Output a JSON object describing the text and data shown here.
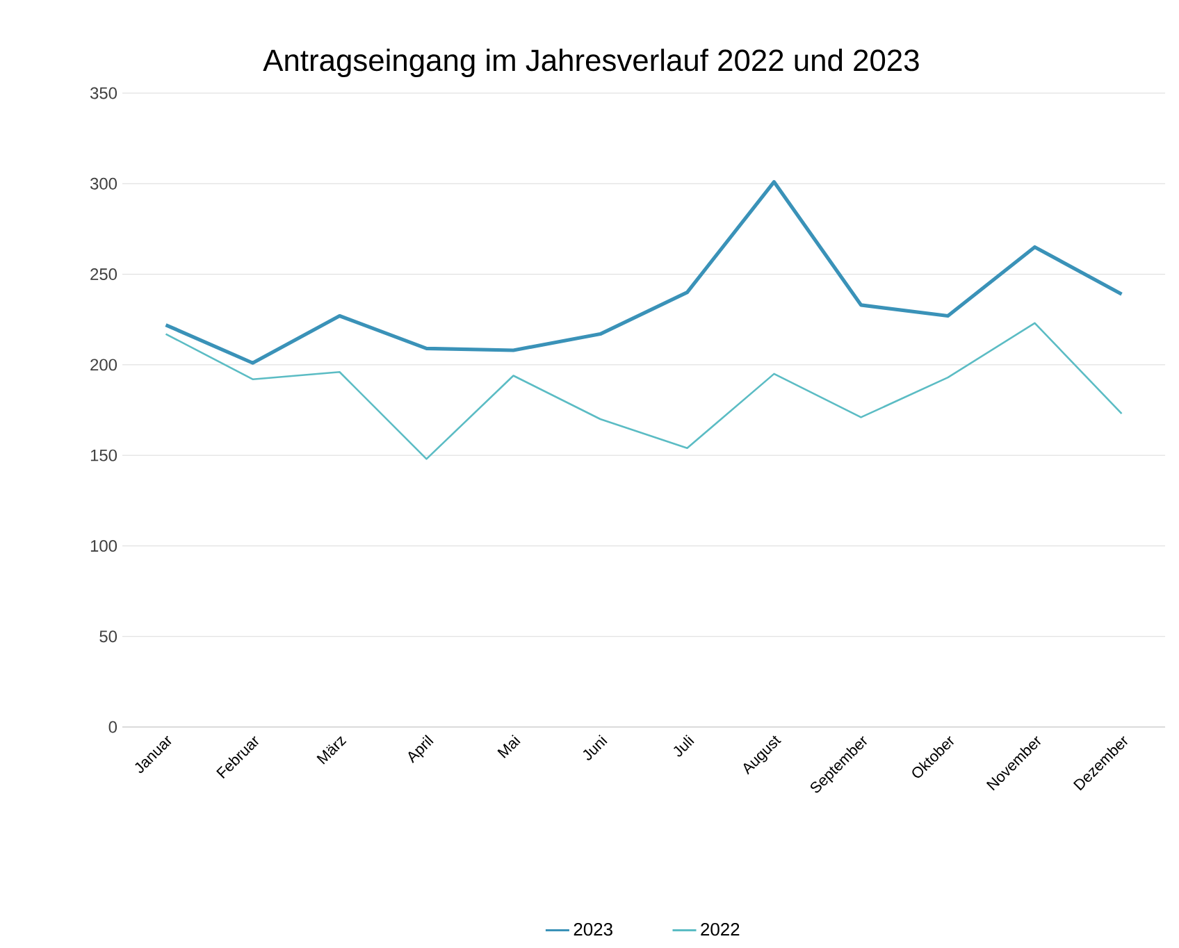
{
  "chart_data": {
    "type": "line",
    "title": "Antragseingang im Jahresverlauf 2022 und 2023",
    "categories": [
      "Januar",
      "Februar",
      "März",
      "April",
      "Mai",
      "Juni",
      "Juli",
      "August",
      "September",
      "Oktober",
      "November",
      "Dezember"
    ],
    "series": [
      {
        "name": "2023",
        "color": "#3a92b8",
        "values": [
          222,
          201,
          227,
          209,
          208,
          217,
          240,
          301,
          233,
          227,
          265,
          239
        ]
      },
      {
        "name": "2022",
        "color": "#5bbcc4",
        "values": [
          217,
          192,
          196,
          148,
          194,
          170,
          154,
          195,
          171,
          193,
          223,
          173
        ]
      }
    ],
    "ylim": [
      0,
      350
    ],
    "yticks": [
      0,
      50,
      100,
      150,
      200,
      250,
      300,
      350
    ],
    "grid": "y",
    "legend": "bottom",
    "marker": "none",
    "line_style": "solid"
  }
}
